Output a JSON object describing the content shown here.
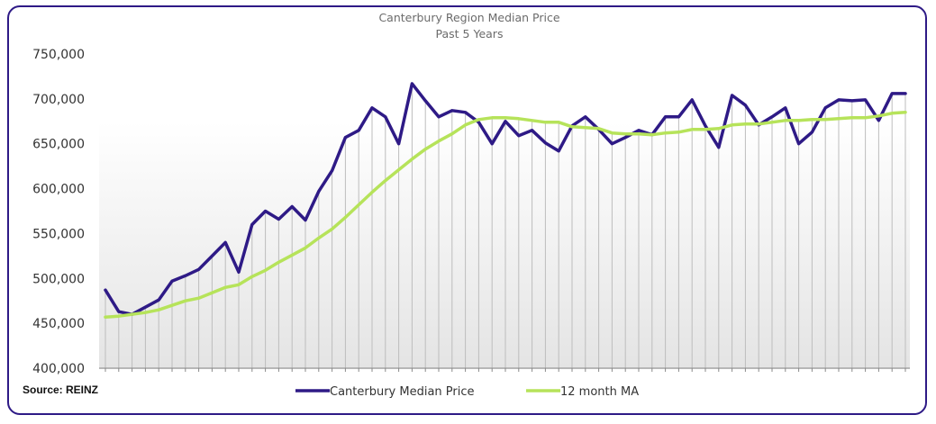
{
  "chart_data": {
    "type": "line",
    "title": "Canterbury Region Median Price",
    "subtitle": "Past 5 Years",
    "xlabel": "",
    "ylabel": "",
    "ylim": [
      400000,
      750000
    ],
    "yticks": [
      400000,
      450000,
      500000,
      550000,
      600000,
      650000,
      700000,
      750000
    ],
    "ytick_labels": [
      "400,000",
      "450,000",
      "500,000",
      "550,000",
      "600,000",
      "650,000",
      "700,000",
      "750,000"
    ],
    "grid": false,
    "vertical_drop_lines": true,
    "legend_position": "bottom",
    "x": [
      1,
      2,
      3,
      4,
      5,
      6,
      7,
      8,
      9,
      10,
      11,
      12,
      13,
      14,
      15,
      16,
      17,
      18,
      19,
      20,
      21,
      22,
      23,
      24,
      25,
      26,
      27,
      28,
      29,
      30,
      31,
      32,
      33,
      34,
      35,
      36,
      37,
      38,
      39,
      40,
      41,
      42,
      43,
      44,
      45,
      46,
      47,
      48,
      49,
      50,
      51,
      52,
      53,
      54,
      55,
      56,
      57,
      58,
      59,
      60,
      61
    ],
    "series": [
      {
        "name": "Canterbury Median Price",
        "color": "#2e1a86",
        "values": [
          487000,
          463000,
          460000,
          468000,
          476000,
          497000,
          503000,
          510000,
          525000,
          540000,
          507000,
          560000,
          575000,
          566000,
          580000,
          565000,
          597000,
          620000,
          657000,
          665000,
          690000,
          680000,
          650000,
          717000,
          698000,
          680000,
          687000,
          685000,
          674000,
          650000,
          675000,
          659000,
          665000,
          651000,
          642000,
          670000,
          680000,
          666000,
          650000,
          657000,
          665000,
          660000,
          680000,
          680000,
          699000,
          670000,
          646000,
          704000,
          693000,
          671000,
          680000,
          690000,
          650000,
          663000,
          690000,
          699000,
          698000,
          699000,
          676000,
          706000,
          706000
        ]
      },
      {
        "name": "12 month MA",
        "color": "#b6e35a",
        "values": [
          457000,
          458000,
          460000,
          462000,
          465000,
          470000,
          475000,
          478000,
          484000,
          490000,
          493000,
          502000,
          509000,
          518000,
          526000,
          534000,
          545000,
          555000,
          568000,
          582000,
          596000,
          609000,
          621000,
          633000,
          644000,
          653000,
          661000,
          671000,
          677000,
          679000,
          679000,
          678000,
          676000,
          674000,
          674000,
          669000,
          668000,
          667000,
          662000,
          661000,
          661000,
          660000,
          662000,
          663000,
          666000,
          666000,
          667000,
          671000,
          672000,
          672000,
          674000,
          676000,
          676000,
          677000,
          677000,
          678000,
          679000,
          679000,
          681000,
          684000,
          685000
        ]
      }
    ]
  },
  "footer": {
    "source_label": "Source: REINZ"
  }
}
